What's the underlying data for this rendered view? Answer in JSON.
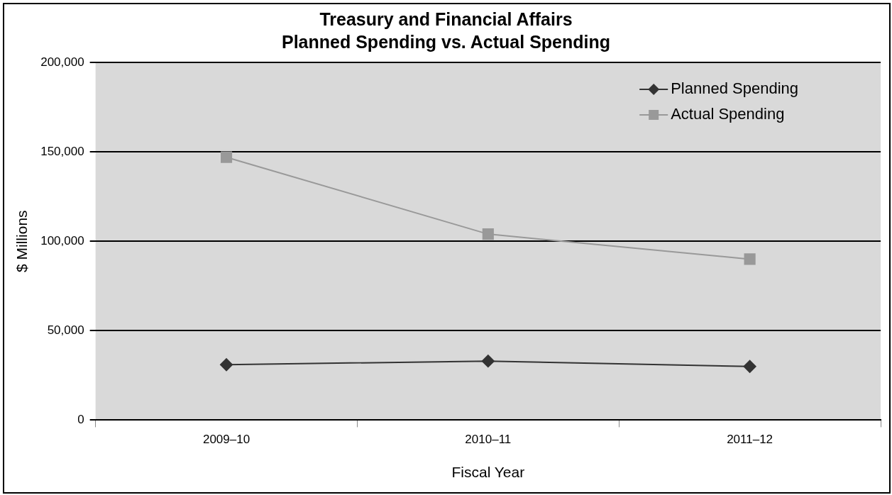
{
  "chart_data": {
    "type": "line",
    "title": "Treasury and Financial Affairs",
    "subtitle": "Planned Spending vs. Actual Spending",
    "xlabel": "Fiscal Year",
    "ylabel": "$ Millions",
    "categories": [
      "2009–10",
      "2010–11",
      "2011–12"
    ],
    "series": [
      {
        "name": "Planned Spending",
        "color": "#333333",
        "marker": "diamond",
        "values": [
          31000,
          33000,
          30000
        ]
      },
      {
        "name": "Actual Spending",
        "color": "#999999",
        "marker": "square",
        "values": [
          147000,
          104000,
          90000
        ]
      }
    ],
    "ylim": [
      0,
      200000
    ],
    "yticks": [
      {
        "value": 0,
        "label": "0"
      },
      {
        "value": 50000,
        "label": "50,000"
      },
      {
        "value": 100000,
        "label": "100,000"
      },
      {
        "value": 150000,
        "label": "150,000"
      },
      {
        "value": 200000,
        "label": "200,000"
      }
    ],
    "grid": "y",
    "legend": "top right"
  }
}
